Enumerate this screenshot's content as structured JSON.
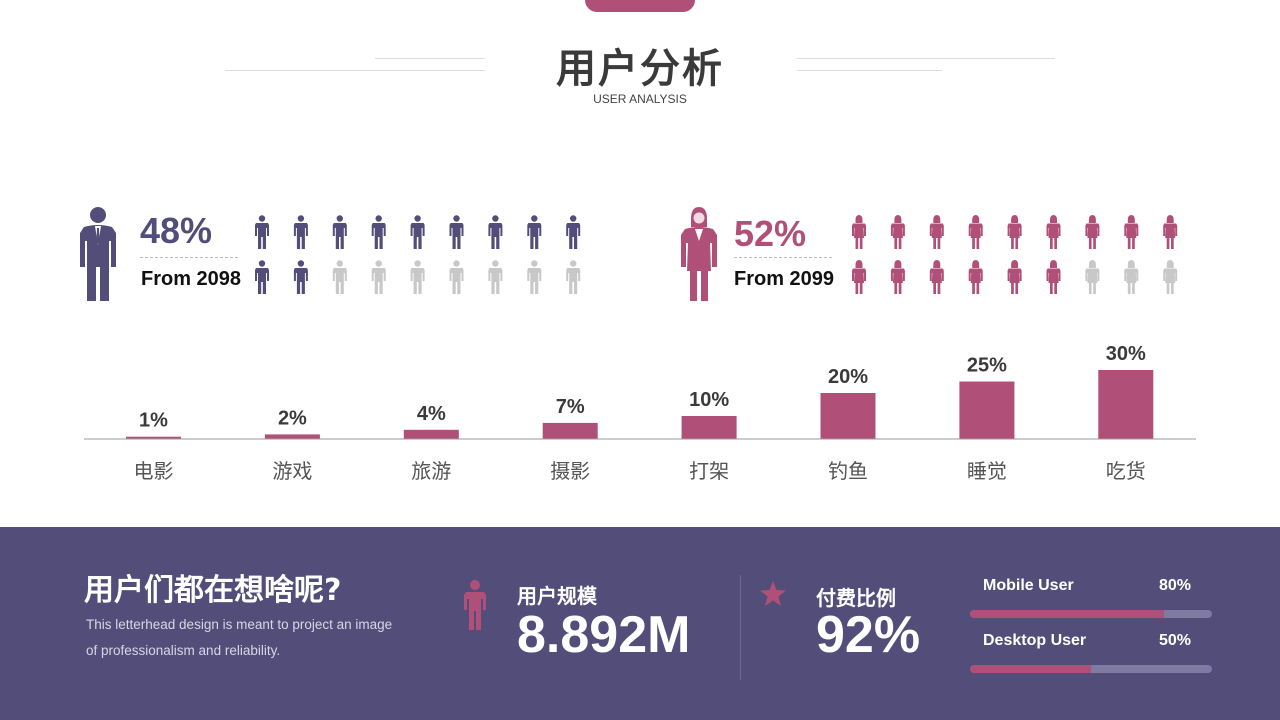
{
  "header": {
    "title": "用户分析",
    "subtitle": "USER ANALYSIS"
  },
  "colors": {
    "male": "#524d79",
    "female": "#b05078",
    "inactive": "#c8c8c8",
    "bar": "#b05078"
  },
  "male": {
    "percent": "48%",
    "from": "From 2098",
    "active_count": 11,
    "total_count": 18,
    "icon": "man-icon"
  },
  "female": {
    "percent": "52%",
    "from": "From 2099",
    "active_count": 15,
    "total_count": 18,
    "icon": "woman-icon"
  },
  "chart_data": {
    "type": "bar",
    "categories": [
      "电影",
      "游戏",
      "旅游",
      "摄影",
      "打架",
      "钓鱼",
      "睡觉",
      "吃货"
    ],
    "values": [
      1,
      2,
      4,
      7,
      10,
      20,
      25,
      30
    ],
    "labels": [
      "1%",
      "2%",
      "4%",
      "7%",
      "10%",
      "20%",
      "25%",
      "30%"
    ],
    "ylim": [
      0,
      30
    ],
    "grid": false
  },
  "footer": {
    "title": "用户们都在想啥呢?",
    "description": "This letterhead design is meant to project an image of professionalism and reliability.",
    "scale": {
      "label": "用户规模",
      "value": "8.892M",
      "icon": "person-icon"
    },
    "paid": {
      "label": "付费比例",
      "value": "92%",
      "icon": "star-icon"
    },
    "progress": [
      {
        "label": "Mobile User",
        "percent": "80%",
        "value": 0.8
      },
      {
        "label": "Desktop User",
        "percent": "50%",
        "value": 0.5
      }
    ]
  }
}
